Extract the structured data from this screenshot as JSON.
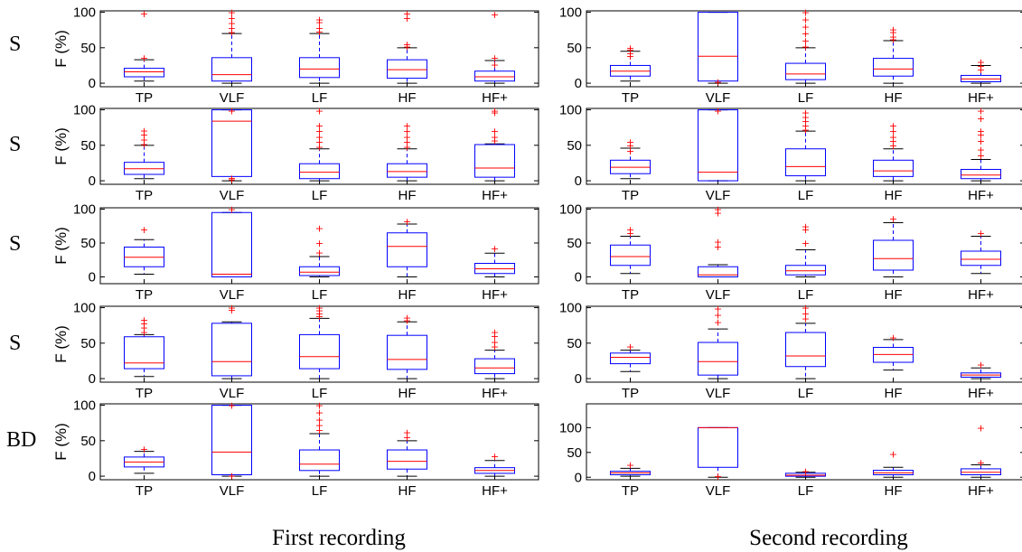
{
  "figure": {
    "row_labels": [
      "S",
      "S",
      "S",
      "S",
      "BD"
    ],
    "column_titles": [
      "First recording",
      "Second recording"
    ],
    "y_label": "F (%)",
    "categories": [
      "TP",
      "VLF",
      "LF",
      "HF",
      "HF+"
    ],
    "colors": {
      "box": "#0000ff",
      "median": "#ff0000",
      "outlier": "#ff0000",
      "axis": "#000000"
    }
  },
  "chart_data": [
    {
      "type": "box",
      "row": 1,
      "column": "First recording",
      "ylabel": "F (%)",
      "categories": [
        "TP",
        "VLF",
        "LF",
        "HF",
        "HF+"
      ],
      "yticks": [
        0,
        50,
        100
      ],
      "ylim": [
        -5,
        102
      ],
      "boxes": [
        {
          "q1": 9,
          "median": 16,
          "q3": 21,
          "whisker_low": 3,
          "whisker_high": 33,
          "outliers": [
            36,
            98
          ]
        },
        {
          "q1": 3,
          "median": 12,
          "q3": 36,
          "whisker_low": 0,
          "whisker_high": 70,
          "outliers": [
            72,
            78,
            85,
            92,
            100
          ]
        },
        {
          "q1": 8,
          "median": 20,
          "q3": 36,
          "whisker_low": 0,
          "whisker_high": 70,
          "outliers": [
            73,
            78,
            86,
            90
          ]
        },
        {
          "q1": 7,
          "median": 19,
          "q3": 33,
          "whisker_low": 0,
          "whisker_high": 50,
          "outliers": [
            52,
            55,
            92,
            98
          ]
        },
        {
          "q1": 3,
          "median": 9,
          "q3": 17,
          "whisker_low": 0,
          "whisker_high": 32,
          "outliers": [
            26,
            36,
            97
          ]
        }
      ]
    },
    {
      "type": "box",
      "row": 1,
      "column": "Second recording",
      "ylabel": "",
      "categories": [
        "TP",
        "VLF",
        "LF",
        "HF",
        "HF+"
      ],
      "yticks": [
        0,
        50,
        100
      ],
      "ylim": [
        -5,
        102
      ],
      "boxes": [
        {
          "q1": 10,
          "median": 17,
          "q3": 25,
          "whisker_low": 3,
          "whisker_high": 45,
          "outliers": [
            38,
            42,
            47,
            50
          ]
        },
        {
          "q1": 3,
          "median": 38,
          "q3": 100,
          "whisker_low": 0,
          "whisker_high": 100,
          "outliers": [
            2
          ]
        },
        {
          "q1": 5,
          "median": 13,
          "q3": 28,
          "whisker_low": 0,
          "whisker_high": 50,
          "outliers": [
            52,
            60,
            70,
            80,
            90,
            100
          ]
        },
        {
          "q1": 10,
          "median": 20,
          "q3": 35,
          "whisker_low": 0,
          "whisker_high": 60,
          "outliers": [
            62,
            66,
            72,
            76
          ]
        },
        {
          "q1": 2,
          "median": 6,
          "q3": 11,
          "whisker_low": 0,
          "whisker_high": 25,
          "outliers": [
            19,
            24,
            30
          ]
        }
      ]
    },
    {
      "type": "box",
      "row": 2,
      "column": "First recording",
      "ylabel": "F (%)",
      "categories": [
        "TP",
        "VLF",
        "LF",
        "HF",
        "HF+"
      ],
      "yticks": [
        0,
        50,
        100
      ],
      "ylim": [
        -5,
        102
      ],
      "boxes": [
        {
          "q1": 9,
          "median": 17,
          "q3": 26,
          "whisker_low": 3,
          "whisker_high": 50,
          "outliers": [
            52,
            58,
            65,
            71
          ]
        },
        {
          "q1": 6,
          "median": 84,
          "q3": 100,
          "whisker_low": 0,
          "whisker_high": 100,
          "outliers": [
            2,
            4,
            99
          ]
        },
        {
          "q1": 3,
          "median": 12,
          "q3": 24,
          "whisker_low": 0,
          "whisker_high": 45,
          "outliers": [
            48,
            55,
            62,
            70,
            78,
            99
          ]
        },
        {
          "q1": 5,
          "median": 13,
          "q3": 24,
          "whisker_low": 0,
          "whisker_high": 45,
          "outliers": [
            48,
            55,
            62,
            70,
            78
          ]
        },
        {
          "q1": 5,
          "median": 18,
          "q3": 51,
          "whisker_low": 0,
          "whisker_high": 52,
          "outliers": [
            57,
            62,
            70,
            96,
            99
          ]
        }
      ]
    },
    {
      "type": "box",
      "row": 2,
      "column": "Second recording",
      "ylabel": "",
      "categories": [
        "TP",
        "VLF",
        "LF",
        "HF",
        "HF+"
      ],
      "yticks": [
        0,
        50,
        100
      ],
      "ylim": [
        -5,
        102
      ],
      "boxes": [
        {
          "q1": 10,
          "median": 19,
          "q3": 29,
          "whisker_low": 3,
          "whisker_high": 46,
          "outliers": [
            42,
            50,
            55
          ]
        },
        {
          "q1": 0,
          "median": 12,
          "q3": 100,
          "whisker_low": 0,
          "whisker_high": 100,
          "outliers": [
            99
          ]
        },
        {
          "q1": 7,
          "median": 20,
          "q3": 45,
          "whisker_low": 0,
          "whisker_high": 70,
          "outliers": [
            72,
            78,
            84,
            90,
            96
          ]
        },
        {
          "q1": 6,
          "median": 14,
          "q3": 29,
          "whisker_low": 0,
          "whisker_high": 45,
          "outliers": [
            50,
            56,
            62,
            70,
            78
          ]
        },
        {
          "q1": 3,
          "median": 8,
          "q3": 16,
          "whisker_low": 0,
          "whisker_high": 30,
          "outliers": [
            36,
            44,
            56,
            65,
            70,
            88,
            99
          ]
        }
      ]
    },
    {
      "type": "box",
      "row": 3,
      "column": "First recording",
      "ylabel": "F (%)",
      "categories": [
        "TP",
        "VLF",
        "LF",
        "HF",
        "HF+"
      ],
      "yticks": [
        0,
        50,
        100
      ],
      "ylim": [
        -10,
        102
      ],
      "boxes": [
        {
          "q1": 15,
          "median": 29,
          "q3": 44,
          "whisker_low": 4,
          "whisker_high": 55,
          "outliers": [
            70
          ]
        },
        {
          "q1": 0,
          "median": 4,
          "q3": 95,
          "whisker_low": 0,
          "whisker_high": 95,
          "outliers": [
            100
          ]
        },
        {
          "q1": 2,
          "median": 7,
          "q3": 15,
          "whisker_low": 0,
          "whisker_high": 30,
          "outliers": [
            36,
            50,
            72
          ]
        },
        {
          "q1": 15,
          "median": 45,
          "q3": 65,
          "whisker_low": 0,
          "whisker_high": 78,
          "outliers": [
            82
          ]
        },
        {
          "q1": 5,
          "median": 12,
          "q3": 20,
          "whisker_low": 0,
          "whisker_high": 35,
          "outliers": [
            42
          ]
        }
      ]
    },
    {
      "type": "box",
      "row": 3,
      "column": "Second recording",
      "ylabel": "",
      "categories": [
        "TP",
        "VLF",
        "LF",
        "HF",
        "HF+"
      ],
      "yticks": [
        0,
        50,
        100
      ],
      "ylim": [
        -10,
        102
      ],
      "boxes": [
        {
          "q1": 17,
          "median": 30,
          "q3": 47,
          "whisker_low": 5,
          "whisker_high": 60,
          "outliers": [
            65,
            70
          ]
        },
        {
          "q1": 0,
          "median": 3,
          "q3": 15,
          "whisker_low": 0,
          "whisker_high": 18,
          "outliers": [
            45,
            52,
            95,
            100
          ]
        },
        {
          "q1": 3,
          "median": 9,
          "q3": 17,
          "whisker_low": 0,
          "whisker_high": 40,
          "outliers": [
            50,
            70,
            75
          ]
        },
        {
          "q1": 10,
          "median": 27,
          "q3": 54,
          "whisker_low": 0,
          "whisker_high": 80,
          "outliers": [
            86
          ]
        },
        {
          "q1": 17,
          "median": 26,
          "q3": 38,
          "whisker_low": 5,
          "whisker_high": 60,
          "outliers": [
            65
          ]
        }
      ]
    },
    {
      "type": "box",
      "row": 4,
      "column": "First recording",
      "ylabel": "F (%)",
      "categories": [
        "TP",
        "VLF",
        "LF",
        "HF",
        "HF+"
      ],
      "yticks": [
        0,
        50,
        100
      ],
      "ylim": [
        -5,
        102
      ],
      "boxes": [
        {
          "q1": 14,
          "median": 22,
          "q3": 59,
          "whisker_low": 3,
          "whisker_high": 62,
          "outliers": [
            66,
            72,
            78,
            83
          ]
        },
        {
          "q1": 4,
          "median": 24,
          "q3": 78,
          "whisker_low": 0,
          "whisker_high": 80,
          "outliers": [
            97,
            100
          ]
        },
        {
          "q1": 14,
          "median": 31,
          "q3": 62,
          "whisker_low": 0,
          "whisker_high": 85,
          "outliers": [
            88,
            92,
            96,
            100
          ]
        },
        {
          "q1": 13,
          "median": 27,
          "q3": 61,
          "whisker_low": 0,
          "whisker_high": 80,
          "outliers": [
            82,
            86
          ]
        },
        {
          "q1": 7,
          "median": 15,
          "q3": 28,
          "whisker_low": 0,
          "whisker_high": 40,
          "outliers": [
            45,
            52,
            60,
            66
          ]
        }
      ]
    },
    {
      "type": "box",
      "row": 4,
      "column": "Second recording",
      "ylabel": "",
      "categories": [
        "TP",
        "VLF",
        "LF",
        "HF",
        "HF+"
      ],
      "yticks": [
        0,
        50,
        100
      ],
      "ylim": [
        -5,
        102
      ],
      "boxes": [
        {
          "q1": 21,
          "median": 30,
          "q3": 36,
          "whisker_low": 10,
          "whisker_high": 40,
          "outliers": [
            45
          ]
        },
        {
          "q1": 5,
          "median": 24,
          "q3": 51,
          "whisker_low": 0,
          "whisker_high": 70,
          "outliers": [
            80,
            90,
            99
          ]
        },
        {
          "q1": 17,
          "median": 32,
          "q3": 65,
          "whisker_low": 0,
          "whisker_high": 78,
          "outliers": [
            85,
            92,
            100
          ]
        },
        {
          "q1": 23,
          "median": 34,
          "q3": 44,
          "whisker_low": 12,
          "whisker_high": 55,
          "outliers": [
            58
          ]
        },
        {
          "q1": 2,
          "median": 5,
          "q3": 8,
          "whisker_low": 0,
          "whisker_high": 15,
          "outliers": [
            20
          ]
        }
      ]
    },
    {
      "type": "box",
      "row": 5,
      "column": "First recording",
      "ylabel": "F (%)",
      "categories": [
        "TP",
        "VLF",
        "LF",
        "HF",
        "HF+"
      ],
      "yticks": [
        0,
        50,
        100
      ],
      "ylim": [
        -5,
        102
      ],
      "boxes": [
        {
          "q1": 13,
          "median": 20,
          "q3": 27,
          "whisker_low": 4,
          "whisker_high": 35,
          "outliers": [
            38
          ]
        },
        {
          "q1": 2,
          "median": 34,
          "q3": 100,
          "whisker_low": 0,
          "whisker_high": 100,
          "outliers": [
            1,
            100
          ]
        },
        {
          "q1": 8,
          "median": 17,
          "q3": 37,
          "whisker_low": 0,
          "whisker_high": 60,
          "outliers": [
            65,
            72,
            80,
            90,
            100
          ]
        },
        {
          "q1": 10,
          "median": 21,
          "q3": 37,
          "whisker_low": 0,
          "whisker_high": 50,
          "outliers": [
            55,
            62
          ]
        },
        {
          "q1": 4,
          "median": 8,
          "q3": 12,
          "whisker_low": 0,
          "whisker_high": 22,
          "outliers": [
            28
          ]
        }
      ]
    },
    {
      "type": "box",
      "row": 5,
      "column": "Second recording",
      "ylabel": "",
      "categories": [
        "TP",
        "VLF",
        "LF",
        "HF",
        "HF+"
      ],
      "yticks": [
        0,
        50,
        100
      ],
      "ylim": [
        -5,
        148
      ],
      "boxes": [
        {
          "q1": 5,
          "median": 9,
          "q3": 12,
          "whisker_low": 2,
          "whisker_high": 18,
          "outliers": [
            25
          ]
        },
        {
          "q1": 20,
          "median": 100,
          "q3": 100,
          "whisker_low": 0,
          "whisker_high": 100,
          "outliers": [
            2
          ]
        },
        {
          "q1": 2,
          "median": 4,
          "q3": 8,
          "whisker_low": 0,
          "whisker_high": 10,
          "outliers": [
            12
          ]
        },
        {
          "q1": 5,
          "median": 9,
          "q3": 14,
          "whisker_low": 0,
          "whisker_high": 20,
          "outliers": [
            47
          ]
        },
        {
          "q1": 5,
          "median": 10,
          "q3": 17,
          "whisker_low": 0,
          "whisker_high": 25,
          "outliers": [
            30,
            100
          ]
        }
      ]
    }
  ]
}
